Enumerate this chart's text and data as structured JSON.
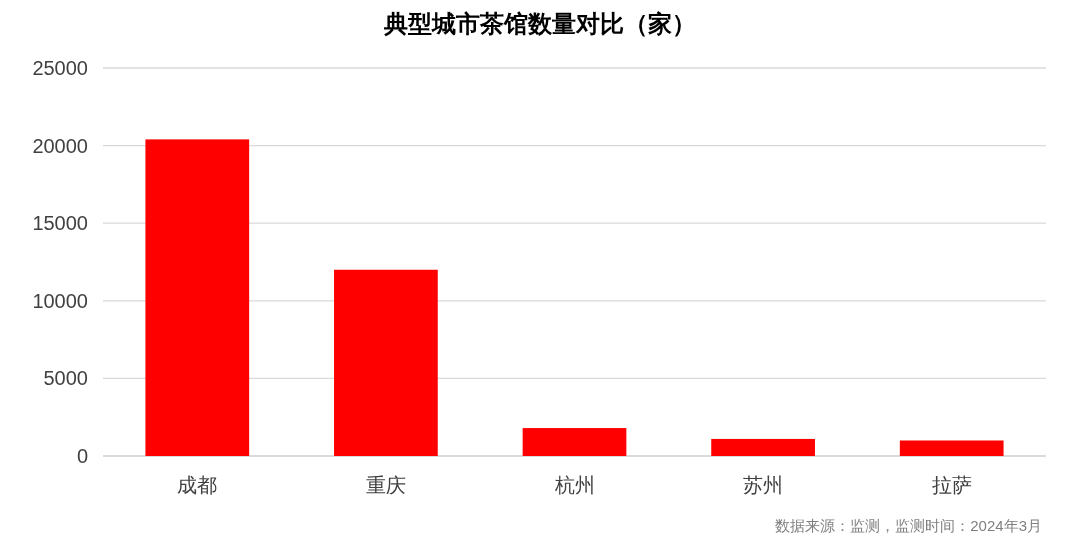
{
  "chart_data": {
    "type": "bar",
    "title": "典型城市茶馆数量对比（家）",
    "categories": [
      "成都",
      "重庆",
      "杭州",
      "苏州",
      "拉萨"
    ],
    "values": [
      20400,
      12000,
      1800,
      1100,
      1000
    ],
    "color": "#ff0000",
    "ylim": [
      0,
      25000
    ],
    "yticks": [
      0,
      5000,
      10000,
      15000,
      20000,
      25000
    ],
    "grid": "y",
    "annotations": [
      "数据来源：监测，监测时间：2024年3月"
    ]
  }
}
